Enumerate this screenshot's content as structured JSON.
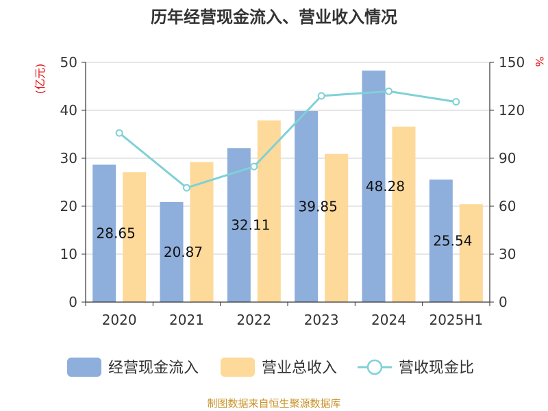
{
  "chart_data": {
    "type": "bar",
    "title": "历年经营现金流入、营业收入情况",
    "categories": [
      "2020",
      "2021",
      "2022",
      "2023",
      "2024",
      "2025H1"
    ],
    "left_axis": {
      "unit": "(亿元)",
      "ticks": [
        "0",
        "10",
        "20",
        "30",
        "40",
        "50"
      ],
      "ylim": [
        0,
        50
      ]
    },
    "right_axis": {
      "unit": "%",
      "ticks": [
        "0",
        "30",
        "60",
        "90",
        "120",
        "150"
      ],
      "ylim": [
        0,
        150
      ]
    },
    "series": [
      {
        "name": "经营现金流入",
        "kind": "bar",
        "axis": "left",
        "color": "#8eaedb",
        "values": [
          28.65,
          20.87,
          32.11,
          39.85,
          48.28,
          25.54
        ],
        "labels": [
          "28.65",
          "20.87",
          "32.11",
          "39.85",
          "48.28",
          "25.54"
        ]
      },
      {
        "name": "营业总收入",
        "kind": "bar",
        "axis": "left",
        "color": "#fdd99a",
        "values": [
          27.1,
          29.2,
          37.9,
          30.9,
          36.6,
          20.4
        ]
      },
      {
        "name": "营收现金比",
        "kind": "line",
        "axis": "right",
        "color": "#7fd1d6",
        "values": [
          105.8,
          71.5,
          84.8,
          129.0,
          131.9,
          125.3
        ]
      }
    ],
    "grid": true,
    "legend_position": "bottom"
  },
  "source": "制图数据来自恒生聚源数据库"
}
